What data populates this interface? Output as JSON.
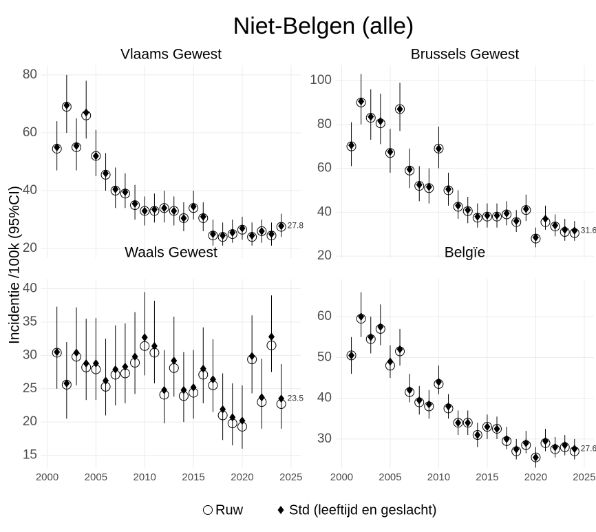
{
  "title": "Niet-Belgen (alle)",
  "y_label": "Incidentie /100k (95%CI)",
  "chart_data": [
    {
      "type": "scatter",
      "title": "Vlaams Gewest",
      "x": [
        2001,
        2002,
        2003,
        2004,
        2005,
        2006,
        2007,
        2008,
        2009,
        2010,
        2011,
        2012,
        2013,
        2014,
        2015,
        2016,
        2017,
        2018,
        2019,
        2020,
        2021,
        2022,
        2023,
        2024
      ],
      "xlim": [
        1999.4,
        2026
      ],
      "xticks": [
        2000,
        2005,
        2010,
        2015,
        2020,
        2025
      ],
      "ylim": [
        16.7,
        83.3
      ],
      "yticks": [
        20,
        40,
        60,
        80
      ],
      "grid": true,
      "series": [
        {
          "name": "Ruw",
          "color": "#000000",
          "marker": "circle",
          "values": [
            54.5,
            69,
            55,
            66,
            52,
            45.5,
            40,
            39,
            35,
            33,
            33,
            34,
            33,
            30.5,
            34,
            30.5,
            24.5,
            24,
            25,
            26.5,
            24,
            26,
            24.5,
            27.5
          ]
        },
        {
          "name": "Std (leeftijd en geslacht)",
          "color": "#000000",
          "marker": "diamond",
          "values": [
            55,
            69.5,
            55.5,
            67,
            52,
            46,
            40.5,
            39.5,
            35.5,
            33,
            33.5,
            34,
            33,
            30.5,
            34.5,
            31,
            25,
            24.5,
            25.5,
            27,
            24.5,
            26,
            25,
            27.8
          ],
          "ci_low": [
            47,
            60,
            47,
            58,
            45,
            40,
            34,
            34,
            30,
            28,
            29,
            29,
            28,
            26,
            30,
            26,
            21,
            21,
            22,
            23,
            21,
            22,
            21,
            24
          ],
          "ci_high": [
            64,
            80,
            65,
            78,
            61,
            53,
            48,
            46,
            42,
            38,
            39,
            40,
            38,
            36,
            40,
            36,
            30,
            29,
            30,
            31,
            29,
            30,
            29,
            32
          ]
        }
      ]
    },
    {
      "type": "scatter",
      "title": "Brussels Gewest",
      "x": [
        2001,
        2002,
        2003,
        2004,
        2005,
        2006,
        2007,
        2008,
        2009,
        2010,
        2011,
        2012,
        2013,
        2014,
        2015,
        2016,
        2017,
        2018,
        2019,
        2020,
        2021,
        2022,
        2023,
        2024
      ],
      "xlim": [
        1999.4,
        2026
      ],
      "xticks": [
        2000,
        2005,
        2010,
        2015,
        2020,
        2025
      ],
      "ylim": [
        19.1,
        106.9
      ],
      "yticks": [
        20,
        40,
        60,
        80,
        100
      ],
      "grid": true,
      "series": [
        {
          "name": "Ruw",
          "color": "#000000",
          "marker": "circle",
          "values": [
            70,
            90,
            83,
            80.5,
            67,
            87,
            59,
            52,
            51,
            69,
            50,
            42.5,
            40.5,
            37.5,
            38,
            38,
            39,
            35.5,
            41,
            28,
            35.5,
            33.5,
            31,
            30.5
          ]
        },
        {
          "name": "Std (leeftijd en geslacht)",
          "color": "#000000",
          "marker": "diamond",
          "values": [
            70.5,
            90.5,
            83.5,
            81.5,
            67.5,
            87,
            59.5,
            52.5,
            51.5,
            69,
            50.5,
            43,
            41,
            38,
            38.5,
            38.5,
            39.5,
            36,
            41.5,
            28.5,
            37,
            34,
            32,
            31.6
          ],
          "ci_low": [
            61,
            80,
            73,
            71,
            58,
            77,
            51,
            45,
            44,
            60,
            43,
            37,
            35,
            33,
            33,
            33,
            34,
            31,
            36,
            24,
            32,
            29,
            27,
            27
          ],
          "ci_high": [
            81,
            103,
            96,
            94,
            78,
            99,
            69,
            61,
            60,
            79,
            58,
            50,
            47,
            44,
            44,
            44,
            45,
            41,
            48,
            33,
            43,
            39,
            37,
            36
          ]
        }
      ]
    },
    {
      "type": "scatter",
      "title": "Waals Gewest",
      "x": [
        2001,
        2002,
        2003,
        2004,
        2005,
        2006,
        2007,
        2008,
        2009,
        2010,
        2011,
        2012,
        2013,
        2014,
        2015,
        2016,
        2017,
        2018,
        2019,
        2020,
        2021,
        2022,
        2023,
        2024
      ],
      "xlim": [
        1999.4,
        2026
      ],
      "xticks": [
        2000,
        2005,
        2010,
        2015,
        2020,
        2025
      ],
      "ylim": [
        13.1,
        41.5
      ],
      "yticks": [
        15,
        20,
        25,
        30,
        35,
        40
      ],
      "grid": true,
      "series": [
        {
          "name": "Ruw",
          "color": "#000000",
          "marker": "circle",
          "values": [
            30.4,
            25.6,
            29.8,
            28.2,
            27.9,
            25.3,
            27.1,
            27.3,
            28.9,
            31.4,
            30.4,
            24.1,
            28.1,
            23.9,
            24.4,
            27.1,
            25.5,
            21,
            19.8,
            19.3,
            29.4,
            23,
            31.5,
            22.7
          ]
        },
        {
          "name": "Std (leeftijd en geslacht)",
          "color": "#000000",
          "marker": "diamond",
          "values": [
            30.5,
            25.8,
            30.4,
            28.8,
            28.8,
            26.2,
            27.9,
            28.3,
            29.8,
            32.7,
            31.4,
            24.8,
            29.2,
            24.8,
            25.2,
            28,
            26.4,
            21.9,
            20.7,
            20.2,
            29.9,
            23.7,
            32.8,
            23.5
          ],
          "ci_low": [
            25,
            20.5,
            25.5,
            23.3,
            23.3,
            21,
            22.5,
            22.8,
            24.2,
            27,
            25.8,
            19.8,
            23.8,
            20,
            20.5,
            22.8,
            21.5,
            17.3,
            16.5,
            16,
            24.3,
            19,
            27.5,
            19
          ],
          "ci_high": [
            37.3,
            32,
            37.2,
            35.5,
            35.6,
            32.5,
            34.5,
            34.8,
            36.5,
            39.5,
            38.2,
            30.8,
            35.8,
            30.5,
            30.8,
            34.2,
            32.4,
            27.3,
            25.8,
            25.5,
            36,
            29.5,
            39,
            28.7
          ]
        }
      ]
    },
    {
      "type": "scatter",
      "title": "Belgïe",
      "x": [
        2001,
        2002,
        2003,
        2004,
        2005,
        2006,
        2007,
        2008,
        2009,
        2010,
        2011,
        2012,
        2013,
        2014,
        2015,
        2016,
        2017,
        2018,
        2019,
        2020,
        2021,
        2022,
        2023,
        2024
      ],
      "xlim": [
        1999.4,
        2026
      ],
      "xticks": [
        2000,
        2005,
        2010,
        2015,
        2020,
        2025
      ],
      "ylim": [
        22.9,
        69.3
      ],
      "yticks": [
        30,
        40,
        50,
        60
      ],
      "grid": true,
      "series": [
        {
          "name": "Ruw",
          "color": "#000000",
          "marker": "circle",
          "values": [
            50.5,
            59.5,
            54.5,
            57,
            48,
            51.5,
            41.5,
            39,
            38,
            43.5,
            37.5,
            34,
            34,
            31,
            33,
            32.5,
            29.5,
            27,
            28.5,
            25.5,
            29,
            27.5,
            28,
            27
          ]
        },
        {
          "name": "Std (leeftijd en geslacht)",
          "color": "#000000",
          "marker": "diamond",
          "values": [
            50.5,
            60,
            55,
            57.5,
            49,
            52,
            42,
            39.5,
            38.5,
            44,
            38,
            34,
            34,
            31,
            33,
            32.5,
            30,
            27.5,
            29,
            25.5,
            29.5,
            28,
            28.5,
            27.6
          ],
          "ci_low": [
            46,
            55,
            51,
            53,
            45,
            48,
            39,
            36,
            35,
            41,
            35,
            31,
            31,
            28,
            30,
            30,
            27.5,
            25,
            26.5,
            23,
            27,
            25.5,
            26,
            25
          ],
          "ci_high": [
            55,
            66,
            60,
            63,
            53,
            57,
            46,
            43,
            42,
            48,
            41,
            37,
            37,
            34,
            36,
            35.5,
            33,
            30,
            32,
            28,
            32.5,
            30.5,
            31,
            30
          ]
        }
      ]
    }
  ]
}
